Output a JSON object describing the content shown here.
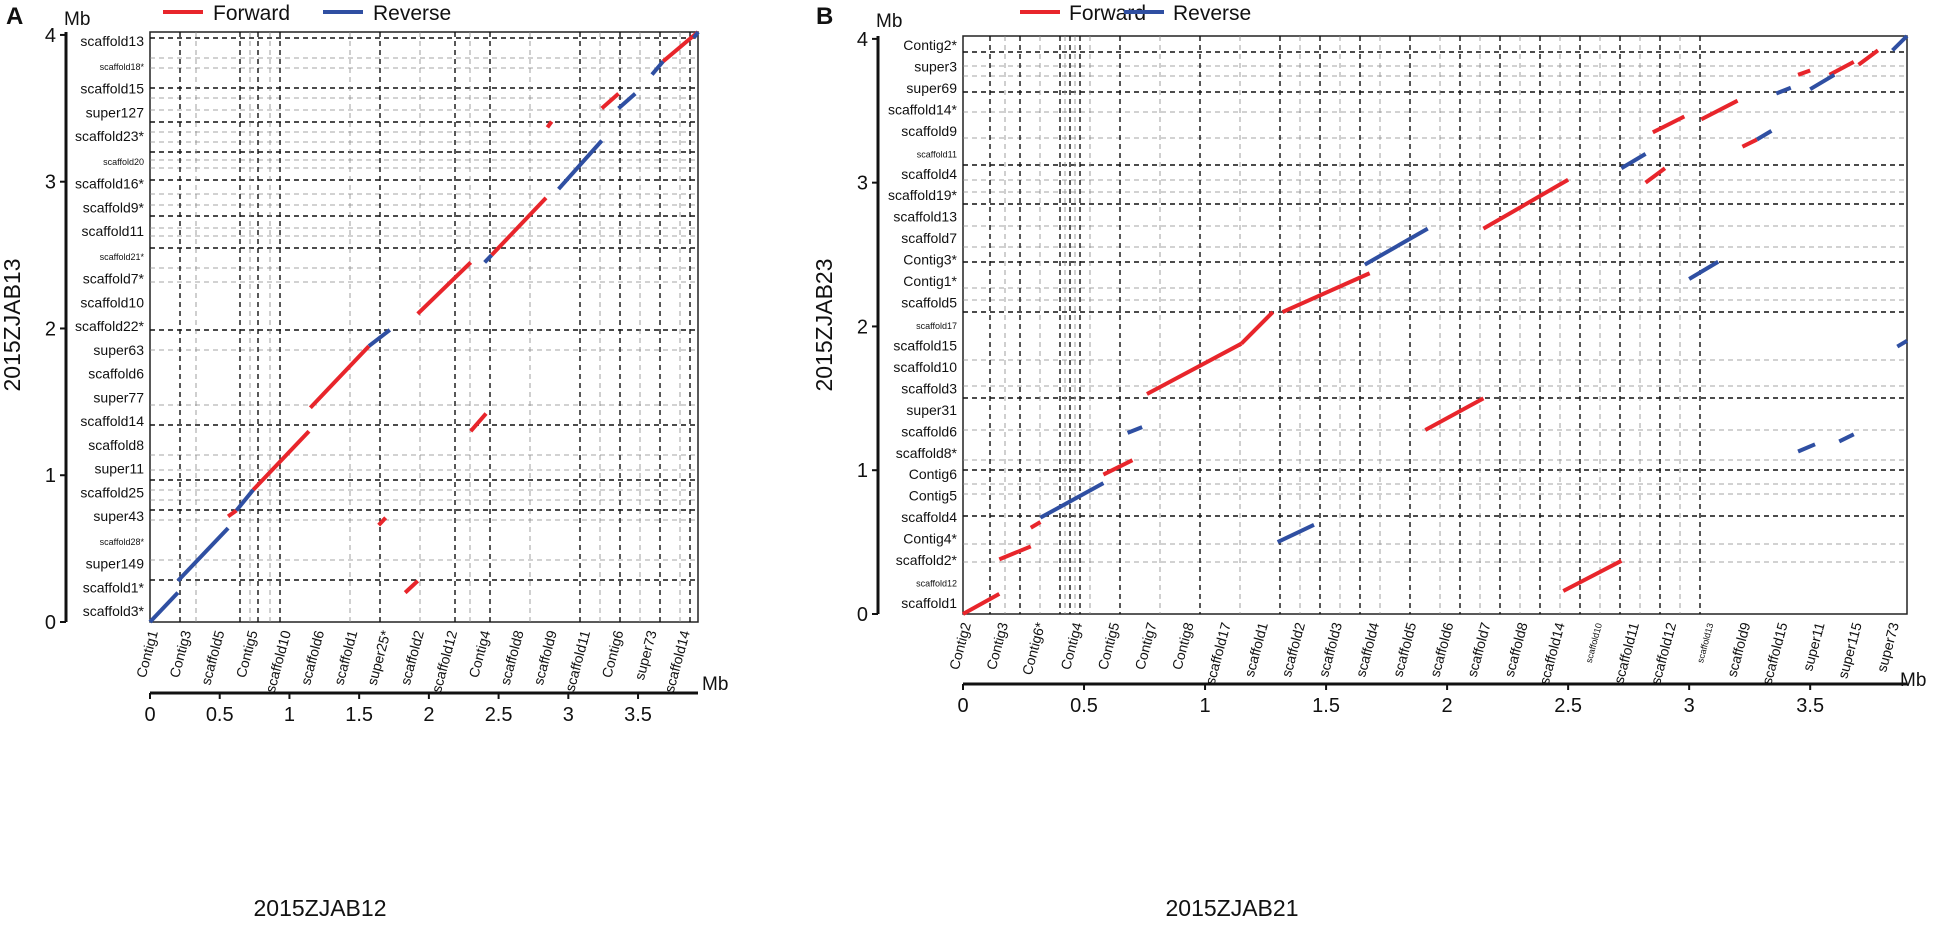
{
  "legend": {
    "forward_label": "Forward",
    "reverse_label": "Reverse",
    "forward_color": "#e8252b",
    "reverse_color": "#2f4fa2"
  },
  "panel_a": {
    "letter": "A",
    "y_unit": "Mb",
    "x_unit": "Mb",
    "y_axis_title": "2015ZJAB13",
    "x_axis_title": "2015ZJAB12",
    "x_ticks": [
      "0",
      "0.5",
      "1",
      "1.5",
      "2",
      "2.5",
      "3",
      "3.5"
    ],
    "y_ticks": [
      "0",
      "1",
      "2",
      "3",
      "4"
    ],
    "x_contigs": [
      "Contig1",
      "Contig3",
      "scaffold5",
      "Contig5",
      "scaffold10",
      "scaffold6",
      "scaffold1",
      "super25*",
      "scaffold2",
      "scaffold12",
      "Contig4",
      "scaffold8",
      "scaffold9",
      "scaffold11",
      "Contig6",
      "super73",
      "scaffold14"
    ],
    "y_contigs": [
      "scaffold13",
      "scaffold18*",
      "scaffold15",
      "super127",
      "scaffold23*",
      "scaffold20",
      "scaffold16*",
      "scaffold9*",
      "scaffold11",
      "scaffold21*",
      "scaffold7*",
      "scaffold10",
      "scaffold22*",
      "super63",
      "scaffold6",
      "super77",
      "scaffold14",
      "scaffold8",
      "super11",
      "scaffold25",
      "super43",
      "scaffold28*",
      "super149",
      "scaffold1*",
      "scaffold3*"
    ]
  },
  "panel_b": {
    "letter": "B",
    "y_unit": "Mb",
    "x_unit": "Mb",
    "y_axis_title": "2015ZJAB23",
    "x_axis_title": "2015ZJAB21",
    "x_ticks": [
      "0",
      "0.5",
      "1",
      "1.5",
      "2",
      "2.5",
      "3",
      "3.5"
    ],
    "y_ticks": [
      "0",
      "1",
      "2",
      "3",
      "4"
    ],
    "x_contigs": [
      "Contig2",
      "Contig3",
      "Contig6*",
      "Contig4",
      "Contig5",
      "Contig7",
      "Contig8",
      "scaffold17",
      "scaffold1",
      "scaffold2",
      "scaffold3",
      "scaffold4",
      "scaffold5",
      "scaffold6",
      "scaffold7",
      "scaffold8",
      "scaffold14",
      "scaffold10",
      "scaffold11",
      "scaffold12",
      "scaffold13",
      "scaffold9",
      "scaffold15",
      "super11",
      "super115",
      "super73"
    ],
    "y_contigs": [
      "Contig2*",
      "super3",
      "super69",
      "scaffold14*",
      "scaffold9",
      "scaffold11",
      "scaffold4",
      "scaffold19*",
      "scaffold13",
      "scaffold7",
      "Contig3*",
      "Contig1*",
      "scaffold5",
      "scaffold17",
      "scaffold15",
      "scaffold10",
      "scaffold3",
      "super31",
      "scaffold6",
      "scaffold8*",
      "Contig6",
      "Contig5",
      "scaffold4",
      "Contig4*",
      "scaffold2*",
      "scaffold12",
      "scaffold1"
    ]
  },
  "chart_data": [
    {
      "type": "scatter",
      "panel": "A",
      "title": "",
      "xlabel": "2015ZJAB12",
      "ylabel": "2015ZJAB13",
      "xlim": [
        0,
        3.93
      ],
      "ylim": [
        0,
        4.02
      ],
      "series": [
        {
          "name": "Forward",
          "segments": [
            [
              0.56,
              0.72,
              0.62,
              0.76
            ],
            [
              0.74,
              0.9,
              1.14,
              1.3
            ],
            [
              1.15,
              1.46,
              1.57,
              1.88
            ],
            [
              1.92,
              2.1,
              2.3,
              2.45
            ],
            [
              2.3,
              1.3,
              2.41,
              1.42
            ],
            [
              1.64,
              0.66,
              1.69,
              0.71
            ],
            [
              1.83,
              0.2,
              1.92,
              0.28
            ],
            [
              2.45,
              2.5,
              2.84,
              2.89
            ],
            [
              2.85,
              3.37,
              2.88,
              3.41
            ],
            [
              3.68,
              3.82,
              3.93,
              4.02
            ],
            [
              3.24,
              3.5,
              3.36,
              3.6
            ]
          ]
        },
        {
          "name": "Reverse",
          "segments": [
            [
              0.0,
              0.0,
              0.2,
              0.2
            ],
            [
              0.2,
              0.28,
              0.56,
              0.64
            ],
            [
              0.62,
              0.76,
              0.74,
              0.9
            ],
            [
              1.57,
              1.88,
              1.72,
              1.99
            ],
            [
              2.4,
              2.45,
              2.45,
              2.5
            ],
            [
              2.93,
              2.95,
              3.24,
              3.28
            ],
            [
              3.36,
              3.5,
              3.48,
              3.6
            ],
            [
              3.6,
              3.73,
              3.68,
              3.82
            ],
            [
              3.9,
              3.98,
              3.93,
              4.02
            ]
          ]
        }
      ]
    },
    {
      "type": "scatter",
      "panel": "B",
      "title": "",
      "xlabel": "2015ZJAB21",
      "ylabel": "2015ZJAB23",
      "xlim": [
        0,
        3.9
      ],
      "ylim": [
        0,
        4.02
      ],
      "series": [
        {
          "name": "Forward",
          "segments": [
            [
              0.0,
              0.0,
              0.15,
              0.14
            ],
            [
              0.15,
              0.38,
              0.28,
              0.47
            ],
            [
              0.28,
              0.6,
              0.32,
              0.64
            ],
            [
              0.58,
              0.97,
              0.7,
              1.07
            ],
            [
              0.76,
              1.53,
              1.15,
              1.88
            ],
            [
              1.15,
              1.88,
              1.28,
              2.1
            ],
            [
              1.32,
              2.1,
              1.68,
              2.37
            ],
            [
              1.91,
              1.28,
              2.15,
              1.5
            ],
            [
              2.15,
              2.68,
              2.5,
              3.02
            ],
            [
              2.48,
              0.16,
              2.72,
              0.37
            ],
            [
              2.82,
              3.0,
              2.9,
              3.1
            ],
            [
              2.85,
              3.35,
              2.98,
              3.46
            ],
            [
              3.05,
              3.44,
              3.2,
              3.57
            ],
            [
              3.22,
              3.25,
              3.28,
              3.3
            ],
            [
              3.45,
              3.75,
              3.5,
              3.78
            ],
            [
              3.58,
              3.75,
              3.68,
              3.84
            ],
            [
              3.7,
              3.82,
              3.78,
              3.92
            ]
          ]
        },
        {
          "name": "Reverse",
          "segments": [
            [
              0.32,
              0.67,
              0.58,
              0.91
            ],
            [
              0.68,
              1.26,
              0.74,
              1.3
            ],
            [
              1.3,
              0.5,
              1.45,
              0.62
            ],
            [
              1.66,
              2.43,
              1.92,
              2.68
            ],
            [
              2.72,
              3.1,
              2.82,
              3.2
            ],
            [
              3.0,
              2.33,
              3.12,
              2.45
            ],
            [
              3.28,
              3.3,
              3.34,
              3.36
            ],
            [
              3.36,
              3.62,
              3.42,
              3.66
            ],
            [
              3.45,
              1.13,
              3.52,
              1.18
            ],
            [
              3.62,
              1.2,
              3.68,
              1.25
            ],
            [
              3.84,
              3.92,
              3.9,
              4.02
            ],
            [
              3.86,
              1.86,
              3.9,
              1.9
            ],
            [
              3.5,
              3.65,
              3.6,
              3.75
            ]
          ]
        }
      ]
    }
  ]
}
